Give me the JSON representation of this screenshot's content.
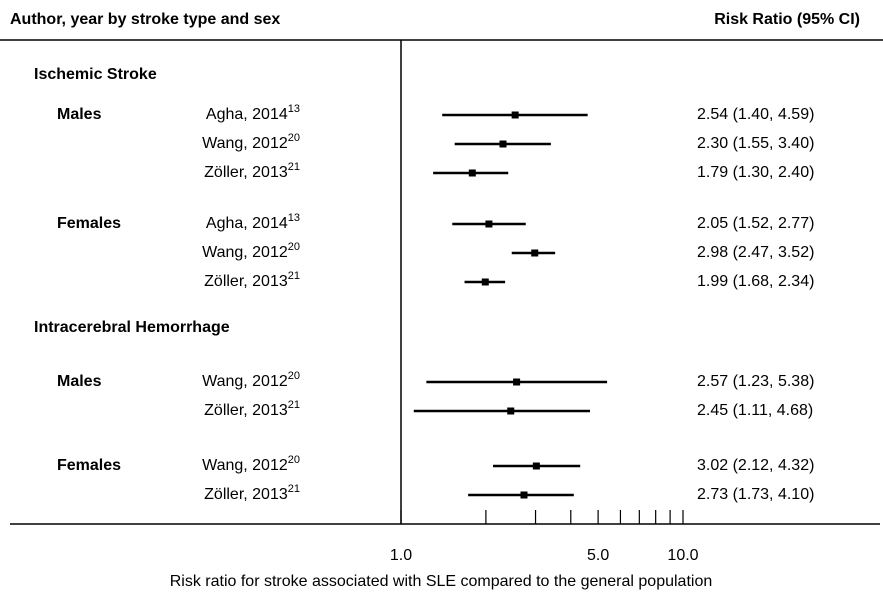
{
  "chart_data": {
    "type": "forest",
    "left_header": "Author, year by stroke type and sex",
    "right_header": "Risk Ratio (95% CI)",
    "x_label": "Risk ratio for stroke associated with SLE compared to the general population",
    "log_x": true,
    "xlim": [
      1,
      10
    ],
    "xticks": [
      {
        "value": 1,
        "label": "1.0"
      },
      {
        "value": 5,
        "label": "5.0"
      },
      {
        "value": 10,
        "label": "10.0"
      }
    ],
    "xminor_ticks": [
      2,
      3,
      4,
      6,
      7,
      8,
      9
    ],
    "color": "#000000",
    "groups": [
      {
        "name": "Ischemic Stroke",
        "subgroups": [
          {
            "name": "Males",
            "studies": [
              {
                "author": "Agha, 2014",
                "ref": "13",
                "value": 2.54,
                "lower": 1.4,
                "upper": 4.59,
                "value_label": "2.54 (1.40, 4.59)"
              },
              {
                "author": "Wang, 2012",
                "ref": "20",
                "value": 2.3,
                "lower": 1.55,
                "upper": 3.4,
                "value_label": "2.30 (1.55, 3.40)"
              },
              {
                "author": "Zöller, 2013",
                "ref": "21",
                "value": 1.79,
                "lower": 1.3,
                "upper": 2.4,
                "value_label": "1.79 (1.30, 2.40)"
              }
            ]
          },
          {
            "name": "Females",
            "studies": [
              {
                "author": "Agha, 2014",
                "ref": "13",
                "value": 2.05,
                "lower": 1.52,
                "upper": 2.77,
                "value_label": "2.05 (1.52, 2.77)"
              },
              {
                "author": "Wang, 2012",
                "ref": "20",
                "value": 2.98,
                "lower": 2.47,
                "upper": 3.52,
                "value_label": "2.98 (2.47, 3.52)"
              },
              {
                "author": "Zöller, 2013",
                "ref": "21",
                "value": 1.99,
                "lower": 1.68,
                "upper": 2.34,
                "value_label": "1.99 (1.68, 2.34)"
              }
            ]
          }
        ]
      },
      {
        "name": "Intracerebral Hemorrhage",
        "subgroups": [
          {
            "name": "Males",
            "studies": [
              {
                "author": "Wang, 2012",
                "ref": "20",
                "value": 2.57,
                "lower": 1.23,
                "upper": 5.38,
                "value_label": "2.57 (1.23, 5.38)"
              },
              {
                "author": "Zöller, 2013",
                "ref": "21",
                "value": 2.45,
                "lower": 1.11,
                "upper": 4.68,
                "value_label": "2.45 (1.11, 4.68)"
              }
            ]
          },
          {
            "name": "Females",
            "studies": [
              {
                "author": "Wang, 2012",
                "ref": "20",
                "value": 3.02,
                "lower": 2.12,
                "upper": 4.32,
                "value_label": "3.02 (2.12, 4.32)"
              },
              {
                "author": "Zöller, 2013",
                "ref": "21",
                "value": 2.73,
                "lower": 1.73,
                "upper": 4.1,
                "value_label": "2.73 (1.73, 4.10)"
              }
            ]
          }
        ]
      }
    ]
  }
}
